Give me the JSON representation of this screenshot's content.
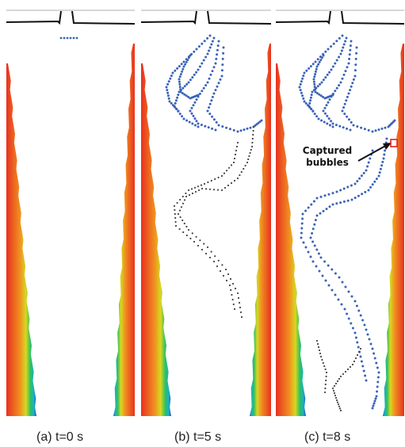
{
  "figure": {
    "panels": [
      {
        "id": "a",
        "caption": "(a)  t=0 s"
      },
      {
        "id": "b",
        "caption": "(b)  t=5 s"
      },
      {
        "id": "c",
        "caption": "(c)  t=8 s"
      }
    ],
    "annotation": {
      "text_line1": "Captured",
      "text_line2": "bubbles"
    },
    "colors": {
      "boundary_line": "#111111",
      "bubble_blue": "#3a62b8",
      "bubble_dark": "#444444",
      "deposit_gradient": [
        "#2840c0",
        "#1ab0c8",
        "#20c060",
        "#c8d820",
        "#f0a020",
        "#e83020"
      ],
      "capture_box": "#e02020"
    }
  }
}
